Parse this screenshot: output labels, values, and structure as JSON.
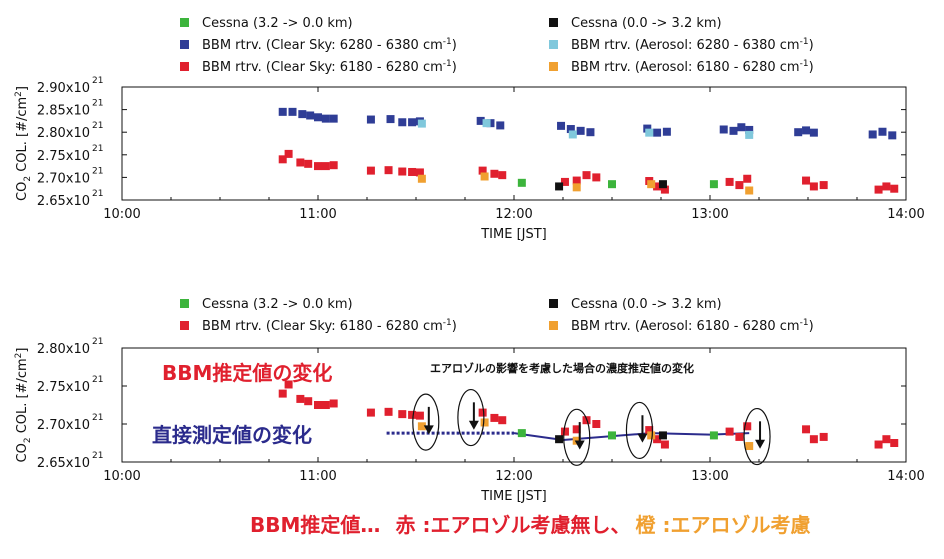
{
  "colors": {
    "cessna_up": "#3cb43c",
    "cessna_down": "#111111",
    "bbm_clear_co2": "#2f3d96",
    "bbm_aero_co2": "#80c8dc",
    "bbm_clear_o2": "#e0202e",
    "bbm_aero_o2": "#f0a030",
    "direct_line": "#2b2b8c"
  },
  "legend_top": [
    {
      "key": "cessna_up",
      "text": "Cessna (3.2 -> 0.0 km)"
    },
    {
      "key": "cessna_down",
      "text": "Cessna (0.0 -> 3.2 km)"
    },
    {
      "key": "bbm_clear_co2",
      "text": "BBM rtrv. (Clear Sky: 6280 - 6380 cm-1)"
    },
    {
      "key": "bbm_aero_co2",
      "text": "BBM rtrv. (Aerosol: 6280 - 6380 cm-1)"
    },
    {
      "key": "bbm_clear_o2",
      "text": "BBM rtrv. (Clear Sky: 6180 - 6280 cm-1)"
    },
    {
      "key": "bbm_aero_o2",
      "text": "BBM rtrv. (Aerosol: 6180 - 6280 cm-1)"
    }
  ],
  "legend_bottom": [
    {
      "key": "cessna_up",
      "text": "Cessna (3.2 -> 0.0 km)"
    },
    {
      "key": "cessna_down",
      "text": "Cessna (0.0 -> 3.2 km)"
    },
    {
      "key": "bbm_clear_o2",
      "text": "BBM rtrv. (Clear Sky: 6180 - 6280 cm-1)"
    },
    {
      "key": "bbm_aero_o2",
      "text": "BBM rtrv. (Aerosol: 6180 - 6280 cm-1)"
    }
  ],
  "annotations": {
    "bbm_change": "BBM推定値の変化",
    "direct_change": "直接測定値の変化",
    "aerosol_note": "エアロゾルの影響を考慮した場合の濃度推定値の変化",
    "footer_prefix": "BBM推定値…",
    "footer_red": "赤 :エアロゾル考慮無し、",
    "footer_orange": "橙 :エアロゾル考慮"
  },
  "chart_data": [
    {
      "type": "scatter",
      "title": "",
      "xlabel": "TIME [JST]",
      "ylabel": "CO2 COL. [#/cm2]",
      "x_ticks": [
        "10:00",
        "11:00",
        "12:00",
        "13:00",
        "14:00"
      ],
      "xlim": [
        10.0,
        14.0
      ],
      "y_ticks": [
        "2.65x10 21",
        "2.70x10 21",
        "2.75x10 21",
        "2.80x10 21",
        "2.85x10 21",
        "2.90x10 21"
      ],
      "ylim": [
        2.65,
        2.9
      ],
      "y_unit": "x10^21",
      "series": [
        {
          "key": "bbm_clear_co2",
          "x": [
            10.82,
            10.87,
            10.92,
            10.96,
            11.0,
            11.04,
            11.08,
            11.27,
            11.37,
            11.43,
            11.48,
            11.52,
            11.83,
            11.88,
            11.93,
            12.24,
            12.29,
            12.34,
            12.39,
            12.68,
            12.73,
            12.78,
            13.07,
            13.12,
            13.16,
            13.2,
            13.45,
            13.49,
            13.53,
            13.83,
            13.88,
            13.93
          ],
          "y": [
            2.845,
            2.845,
            2.84,
            2.837,
            2.833,
            2.83,
            2.83,
            2.828,
            2.829,
            2.822,
            2.822,
            2.824,
            2.825,
            2.82,
            2.815,
            2.814,
            2.807,
            2.803,
            2.8,
            2.808,
            2.799,
            2.801,
            2.806,
            2.803,
            2.811,
            2.805,
            2.8,
            2.804,
            2.799,
            2.795,
            2.801,
            2.793
          ]
        },
        {
          "key": "bbm_aero_co2",
          "x": [
            11.53,
            11.86,
            12.3,
            12.69,
            13.2
          ],
          "y": [
            2.819,
            2.82,
            2.795,
            2.799,
            2.794
          ]
        },
        {
          "key": "bbm_clear_o2",
          "x": [
            10.82,
            10.85,
            10.91,
            10.95,
            11.0,
            11.04,
            11.08,
            11.27,
            11.36,
            11.43,
            11.48,
            11.52,
            11.84,
            11.9,
            11.94,
            12.26,
            12.32,
            12.37,
            12.42,
            12.69,
            12.73,
            12.77,
            13.1,
            13.15,
            13.19,
            13.49,
            13.53,
            13.58,
            13.86,
            13.9,
            13.94
          ],
          "y": [
            2.74,
            2.752,
            2.733,
            2.73,
            2.725,
            2.725,
            2.727,
            2.715,
            2.716,
            2.713,
            2.712,
            2.711,
            2.715,
            2.708,
            2.705,
            2.69,
            2.693,
            2.705,
            2.7,
            2.692,
            2.68,
            2.673,
            2.69,
            2.683,
            2.697,
            2.693,
            2.68,
            2.683,
            2.673,
            2.68,
            2.675
          ]
        },
        {
          "key": "bbm_aero_o2",
          "x": [
            11.53,
            11.85,
            12.32,
            12.7,
            13.2
          ],
          "y": [
            2.697,
            2.702,
            2.678,
            2.685,
            2.671
          ]
        },
        {
          "key": "cessna_up",
          "x": [
            12.04,
            12.5,
            13.02
          ],
          "y": [
            2.688,
            2.685,
            2.685
          ]
        },
        {
          "key": "cessna_down",
          "x": [
            12.23,
            12.76
          ],
          "y": [
            2.68,
            2.685
          ]
        }
      ]
    },
    {
      "type": "scatter",
      "title": "",
      "xlabel": "TIME [JST]",
      "ylabel": "CO2 COL. [#/cm2]",
      "x_ticks": [
        "10:00",
        "11:00",
        "12:00",
        "13:00",
        "14:00"
      ],
      "xlim": [
        10.0,
        14.0
      ],
      "y_ticks": [
        "2.65x10 21",
        "2.70x10 21",
        "2.75x10 21",
        "2.80x10 21"
      ],
      "ylim": [
        2.65,
        2.8
      ],
      "y_unit": "x10^21",
      "series": [
        {
          "key": "bbm_clear_o2",
          "x": [
            10.82,
            10.85,
            10.91,
            10.95,
            11.0,
            11.04,
            11.08,
            11.27,
            11.36,
            11.43,
            11.48,
            11.52,
            11.84,
            11.9,
            11.94,
            12.26,
            12.32,
            12.37,
            12.42,
            12.69,
            12.73,
            12.77,
            13.1,
            13.15,
            13.19,
            13.49,
            13.53,
            13.58,
            13.86,
            13.9,
            13.94
          ],
          "y": [
            2.74,
            2.752,
            2.733,
            2.73,
            2.725,
            2.725,
            2.727,
            2.715,
            2.716,
            2.713,
            2.712,
            2.711,
            2.715,
            2.708,
            2.705,
            2.69,
            2.693,
            2.705,
            2.7,
            2.692,
            2.68,
            2.673,
            2.69,
            2.683,
            2.697,
            2.693,
            2.68,
            2.683,
            2.673,
            2.68,
            2.675
          ]
        },
        {
          "key": "bbm_aero_o2",
          "x": [
            11.53,
            11.85,
            12.32,
            12.7,
            13.2
          ],
          "y": [
            2.697,
            2.702,
            2.678,
            2.685,
            2.671
          ]
        },
        {
          "key": "cessna_up",
          "x": [
            12.04,
            12.5,
            13.02
          ],
          "y": [
            2.688,
            2.685,
            2.685
          ]
        },
        {
          "key": "cessna_down",
          "x": [
            12.23,
            12.76
          ],
          "y": [
            2.68,
            2.685
          ]
        }
      ],
      "direct_measurement_line": {
        "x": [
          11.35,
          11.65,
          12.0,
          12.25,
          12.7,
          13.0,
          13.2
        ],
        "y": [
          2.688,
          2.688,
          2.688,
          2.679,
          2.688,
          2.686,
          2.688
        ]
      },
      "aerosol_markers": [
        {
          "x": 11.55,
          "y_from": 2.712,
          "y_to": 2.693
        },
        {
          "x": 11.78,
          "y_from": 2.718,
          "y_to": 2.699
        },
        {
          "x": 12.32,
          "y_from": 2.692,
          "y_to": 2.673
        },
        {
          "x": 12.64,
          "y_from": 2.701,
          "y_to": 2.682
        },
        {
          "x": 13.24,
          "y_from": 2.693,
          "y_to": 2.674
        }
      ]
    }
  ]
}
